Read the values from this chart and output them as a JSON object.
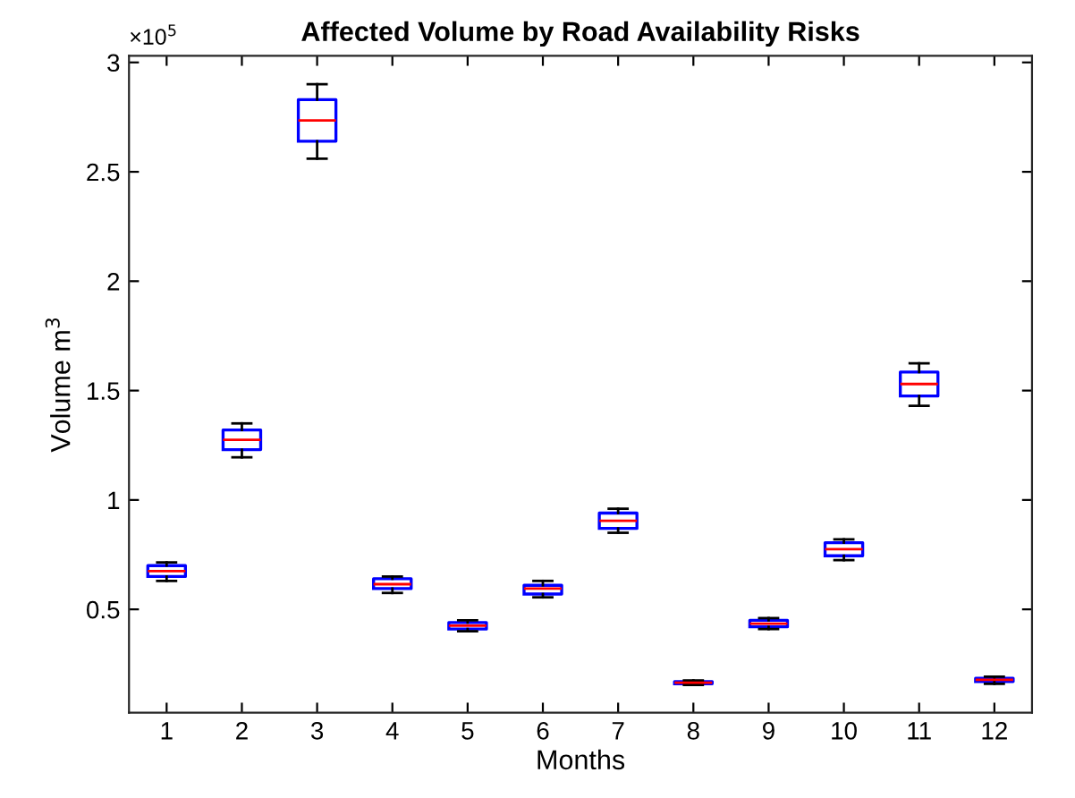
{
  "chart_data": {
    "type": "box",
    "title": "Affected Volume by Road Availability Risks",
    "xlabel": "Months",
    "ylabel": "Volume m$^{3}$",
    "annotations": [
      "×10$^{5}$"
    ],
    "categories": [
      "1",
      "2",
      "3",
      "4",
      "5",
      "6",
      "7",
      "8",
      "9",
      "10",
      "11",
      "12"
    ],
    "ylim": [
      0.028,
      3.03
    ],
    "yticks": [
      0.5,
      1,
      1.5,
      2,
      2.5,
      3
    ],
    "series": [
      {
        "color": "#0000ff",
        "boxes": [
          {
            "low": 0.63,
            "q1": 0.65,
            "median": 0.675,
            "q3": 0.7,
            "high": 0.715
          },
          {
            "low": 1.195,
            "q1": 1.23,
            "median": 1.275,
            "q3": 1.32,
            "high": 1.35
          },
          {
            "low": 2.56,
            "q1": 2.64,
            "median": 2.735,
            "q3": 2.83,
            "high": 2.9
          },
          {
            "low": 0.575,
            "q1": 0.595,
            "median": 0.615,
            "q3": 0.64,
            "high": 0.65
          },
          {
            "low": 0.4,
            "q1": 0.41,
            "median": 0.425,
            "q3": 0.44,
            "high": 0.45
          },
          {
            "low": 0.555,
            "q1": 0.57,
            "median": 0.595,
            "q3": 0.61,
            "high": 0.63
          },
          {
            "low": 0.85,
            "q1": 0.87,
            "median": 0.905,
            "q3": 0.94,
            "high": 0.96
          },
          {
            "low": 0.155,
            "q1": 0.16,
            "median": 0.165,
            "q3": 0.17,
            "high": 0.175
          },
          {
            "low": 0.41,
            "q1": 0.42,
            "median": 0.435,
            "q3": 0.45,
            "high": 0.46
          },
          {
            "low": 0.725,
            "q1": 0.745,
            "median": 0.775,
            "q3": 0.805,
            "high": 0.82
          },
          {
            "low": 1.43,
            "q1": 1.475,
            "median": 1.53,
            "q3": 1.585,
            "high": 1.625
          },
          {
            "low": 0.16,
            "q1": 0.17,
            "median": 0.178,
            "q3": 0.185,
            "high": 0.192
          }
        ]
      }
    ]
  }
}
